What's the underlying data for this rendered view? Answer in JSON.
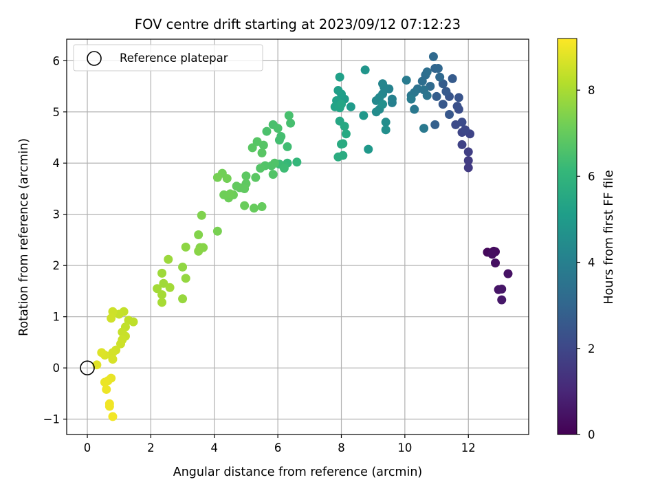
{
  "colors": {
    "viridis": [
      "#440154",
      "#482878",
      "#3e4989",
      "#31688e",
      "#26828e",
      "#1f9e89",
      "#35b779",
      "#6ece58",
      "#b5de2b",
      "#fde725"
    ],
    "grid": "#b0b0b0",
    "axes": "#000000"
  },
  "chart_data": {
    "type": "scatter",
    "title": "FOV centre drift starting at 2023/09/12 07:12:23",
    "xlabel": "Angular distance from reference (arcmin)",
    "ylabel": "Rotation from reference (arcmin)",
    "xlim": [
      -0.65,
      13.9
    ],
    "ylim": [
      -1.3,
      6.42
    ],
    "xticks": [
      0,
      2,
      4,
      6,
      8,
      10,
      12
    ],
    "yticks": [
      -1,
      0,
      1,
      2,
      3,
      4,
      5,
      6
    ],
    "grid": true,
    "legend": {
      "placement": "top-left",
      "entries": [
        {
          "label": "Reference platepar",
          "marker": "open-circle"
        }
      ]
    },
    "reference": {
      "x": 0,
      "y": 0
    },
    "colorbar": {
      "label": "Hours from first FF file",
      "min": 0,
      "max": 9.2,
      "ticks": [
        0,
        2,
        4,
        6,
        8
      ],
      "colormap": "viridis"
    },
    "points": [
      {
        "x": 12.6,
        "y": 2.26,
        "t": 0.2
      },
      {
        "x": 12.8,
        "y": 2.28,
        "t": 0.25
      },
      {
        "x": 12.85,
        "y": 2.27,
        "t": 0.3
      },
      {
        "x": 12.75,
        "y": 2.22,
        "t": 0.35
      },
      {
        "x": 12.85,
        "y": 2.05,
        "t": 0.4
      },
      {
        "x": 13.25,
        "y": 1.84,
        "t": 0.45
      },
      {
        "x": 12.95,
        "y": 1.53,
        "t": 0.5
      },
      {
        "x": 13.05,
        "y": 1.54,
        "t": 0.55
      },
      {
        "x": 13.05,
        "y": 1.33,
        "t": 0.6
      },
      {
        "x": 12.0,
        "y": 3.91,
        "t": 1.6
      },
      {
        "x": 12.0,
        "y": 4.05,
        "t": 1.65
      },
      {
        "x": 12.0,
        "y": 4.22,
        "t": 1.75
      },
      {
        "x": 11.8,
        "y": 4.36,
        "t": 1.85
      },
      {
        "x": 12.05,
        "y": 4.57,
        "t": 1.9
      },
      {
        "x": 11.8,
        "y": 4.6,
        "t": 1.95
      },
      {
        "x": 11.9,
        "y": 4.65,
        "t": 2.0
      },
      {
        "x": 11.6,
        "y": 4.75,
        "t": 2.1
      },
      {
        "x": 11.8,
        "y": 4.8,
        "t": 2.15
      },
      {
        "x": 11.7,
        "y": 5.05,
        "t": 2.2
      },
      {
        "x": 11.65,
        "y": 5.11,
        "t": 2.3
      },
      {
        "x": 11.7,
        "y": 5.28,
        "t": 2.4
      },
      {
        "x": 11.4,
        "y": 5.3,
        "t": 2.45
      },
      {
        "x": 11.4,
        "y": 4.95,
        "t": 2.5
      },
      {
        "x": 11.2,
        "y": 5.15,
        "t": 2.55
      },
      {
        "x": 11.3,
        "y": 5.4,
        "t": 2.6
      },
      {
        "x": 11.5,
        "y": 5.65,
        "t": 2.65
      },
      {
        "x": 11.2,
        "y": 5.55,
        "t": 2.7
      },
      {
        "x": 11.0,
        "y": 5.3,
        "t": 2.75
      },
      {
        "x": 10.95,
        "y": 4.75,
        "t": 2.8
      },
      {
        "x": 10.95,
        "y": 5.85,
        "t": 3.0
      },
      {
        "x": 11.05,
        "y": 5.85,
        "t": 3.05
      },
      {
        "x": 11.1,
        "y": 5.68,
        "t": 3.1
      },
      {
        "x": 10.9,
        "y": 6.08,
        "t": 3.15
      },
      {
        "x": 10.8,
        "y": 5.5,
        "t": 3.2
      },
      {
        "x": 10.65,
        "y": 5.72,
        "t": 3.25
      },
      {
        "x": 10.55,
        "y": 5.6,
        "t": 3.3
      },
      {
        "x": 10.7,
        "y": 5.78,
        "t": 3.35
      },
      {
        "x": 10.4,
        "y": 5.45,
        "t": 3.45
      },
      {
        "x": 10.6,
        "y": 5.43,
        "t": 3.5
      },
      {
        "x": 10.7,
        "y": 5.32,
        "t": 3.55
      },
      {
        "x": 10.3,
        "y": 5.38,
        "t": 3.6
      },
      {
        "x": 10.2,
        "y": 5.32,
        "t": 3.65
      },
      {
        "x": 10.3,
        "y": 5.05,
        "t": 3.7
      },
      {
        "x": 10.6,
        "y": 4.68,
        "t": 3.75
      },
      {
        "x": 10.05,
        "y": 5.62,
        "t": 3.8
      },
      {
        "x": 10.2,
        "y": 5.25,
        "t": 3.85
      },
      {
        "x": 9.6,
        "y": 5.18,
        "t": 4.0
      },
      {
        "x": 9.6,
        "y": 5.25,
        "t": 4.05
      },
      {
        "x": 9.5,
        "y": 5.45,
        "t": 4.1
      },
      {
        "x": 9.35,
        "y": 5.48,
        "t": 4.15
      },
      {
        "x": 9.3,
        "y": 5.55,
        "t": 4.2
      },
      {
        "x": 9.3,
        "y": 5.35,
        "t": 4.25
      },
      {
        "x": 9.2,
        "y": 5.28,
        "t": 4.3
      },
      {
        "x": 9.1,
        "y": 5.22,
        "t": 4.35
      },
      {
        "x": 9.2,
        "y": 5.05,
        "t": 4.4
      },
      {
        "x": 9.1,
        "y": 5.0,
        "t": 4.45
      },
      {
        "x": 9.4,
        "y": 4.8,
        "t": 4.5
      },
      {
        "x": 9.4,
        "y": 4.65,
        "t": 4.55
      },
      {
        "x": 9.3,
        "y": 5.15,
        "t": 4.6
      },
      {
        "x": 8.75,
        "y": 5.82,
        "t": 4.8
      },
      {
        "x": 8.7,
        "y": 4.93,
        "t": 4.85
      },
      {
        "x": 8.85,
        "y": 4.27,
        "t": 4.9
      },
      {
        "x": 8.3,
        "y": 5.1,
        "t": 5.0
      },
      {
        "x": 8.1,
        "y": 5.25,
        "t": 5.05
      },
      {
        "x": 8.0,
        "y": 5.35,
        "t": 5.1
      },
      {
        "x": 7.9,
        "y": 5.42,
        "t": 5.15
      },
      {
        "x": 7.95,
        "y": 5.68,
        "t": 5.2
      },
      {
        "x": 7.85,
        "y": 5.22,
        "t": 5.25
      },
      {
        "x": 7.8,
        "y": 5.1,
        "t": 5.3
      },
      {
        "x": 7.95,
        "y": 5.08,
        "t": 5.35
      },
      {
        "x": 8.0,
        "y": 5.15,
        "t": 5.4
      },
      {
        "x": 7.95,
        "y": 4.82,
        "t": 5.45
      },
      {
        "x": 8.1,
        "y": 4.72,
        "t": 5.5
      },
      {
        "x": 8.15,
        "y": 4.57,
        "t": 5.55
      },
      {
        "x": 8.05,
        "y": 4.38,
        "t": 5.6
      },
      {
        "x": 8.0,
        "y": 4.37,
        "t": 5.62
      },
      {
        "x": 8.05,
        "y": 4.15,
        "t": 5.65
      },
      {
        "x": 7.9,
        "y": 4.12,
        "t": 5.7
      },
      {
        "x": 6.6,
        "y": 4.02,
        "t": 6.1
      },
      {
        "x": 6.3,
        "y": 4.0,
        "t": 6.15
      },
      {
        "x": 6.2,
        "y": 3.95,
        "t": 6.2
      },
      {
        "x": 6.05,
        "y": 3.98,
        "t": 6.25
      },
      {
        "x": 6.2,
        "y": 3.9,
        "t": 6.3
      },
      {
        "x": 6.3,
        "y": 4.32,
        "t": 6.35
      },
      {
        "x": 6.05,
        "y": 4.45,
        "t": 6.4
      },
      {
        "x": 6.1,
        "y": 4.52,
        "t": 6.42
      },
      {
        "x": 6.4,
        "y": 4.78,
        "t": 6.45
      },
      {
        "x": 6.35,
        "y": 4.93,
        "t": 6.47
      },
      {
        "x": 5.85,
        "y": 4.75,
        "t": 6.5
      },
      {
        "x": 6.0,
        "y": 4.68,
        "t": 6.52
      },
      {
        "x": 5.65,
        "y": 4.62,
        "t": 6.55
      },
      {
        "x": 5.8,
        "y": 3.95,
        "t": 6.6
      },
      {
        "x": 5.9,
        "y": 4.0,
        "t": 6.62
      },
      {
        "x": 5.6,
        "y": 3.95,
        "t": 6.65
      },
      {
        "x": 5.85,
        "y": 3.78,
        "t": 6.68
      },
      {
        "x": 5.45,
        "y": 3.9,
        "t": 6.7
      },
      {
        "x": 5.55,
        "y": 4.35,
        "t": 6.72
      },
      {
        "x": 5.35,
        "y": 4.42,
        "t": 6.75
      },
      {
        "x": 5.5,
        "y": 4.2,
        "t": 6.77
      },
      {
        "x": 5.2,
        "y": 4.3,
        "t": 6.8
      },
      {
        "x": 5.3,
        "y": 3.72,
        "t": 6.82
      },
      {
        "x": 5.0,
        "y": 3.75,
        "t": 6.85
      },
      {
        "x": 5.0,
        "y": 3.6,
        "t": 6.87
      },
      {
        "x": 4.8,
        "y": 3.52,
        "t": 6.9
      },
      {
        "x": 4.95,
        "y": 3.5,
        "t": 6.92
      },
      {
        "x": 4.7,
        "y": 3.55,
        "t": 6.95
      },
      {
        "x": 5.5,
        "y": 3.15,
        "t": 7.0
      },
      {
        "x": 5.25,
        "y": 3.12,
        "t": 7.02
      },
      {
        "x": 4.95,
        "y": 3.17,
        "t": 7.05
      },
      {
        "x": 4.6,
        "y": 3.38,
        "t": 7.1
      },
      {
        "x": 4.45,
        "y": 3.32,
        "t": 7.12
      },
      {
        "x": 4.3,
        "y": 3.38,
        "t": 7.15
      },
      {
        "x": 4.5,
        "y": 3.4,
        "t": 7.17
      },
      {
        "x": 4.25,
        "y": 3.8,
        "t": 7.2
      },
      {
        "x": 4.4,
        "y": 3.7,
        "t": 7.22
      },
      {
        "x": 4.1,
        "y": 3.72,
        "t": 7.25
      },
      {
        "x": 4.1,
        "y": 2.67,
        "t": 7.3
      },
      {
        "x": 3.6,
        "y": 2.98,
        "t": 7.4
      },
      {
        "x": 3.5,
        "y": 2.6,
        "t": 7.45
      },
      {
        "x": 3.55,
        "y": 2.35,
        "t": 7.5
      },
      {
        "x": 3.65,
        "y": 2.35,
        "t": 7.52
      },
      {
        "x": 3.5,
        "y": 2.28,
        "t": 7.55
      },
      {
        "x": 3.1,
        "y": 2.36,
        "t": 7.6
      },
      {
        "x": 3.0,
        "y": 1.97,
        "t": 7.65
      },
      {
        "x": 3.1,
        "y": 1.75,
        "t": 7.7
      },
      {
        "x": 3.0,
        "y": 1.35,
        "t": 7.75
      },
      {
        "x": 2.55,
        "y": 2.12,
        "t": 7.8
      },
      {
        "x": 2.35,
        "y": 1.85,
        "t": 7.85
      },
      {
        "x": 2.4,
        "y": 1.65,
        "t": 7.87
      },
      {
        "x": 2.6,
        "y": 1.57,
        "t": 7.9
      },
      {
        "x": 2.2,
        "y": 1.55,
        "t": 7.92
      },
      {
        "x": 2.35,
        "y": 1.43,
        "t": 7.95
      },
      {
        "x": 2.35,
        "y": 1.28,
        "t": 7.97
      },
      {
        "x": 1.45,
        "y": 0.9,
        "t": 8.3
      },
      {
        "x": 1.3,
        "y": 0.93,
        "t": 8.32
      },
      {
        "x": 1.2,
        "y": 0.8,
        "t": 8.35
      },
      {
        "x": 1.15,
        "y": 1.1,
        "t": 8.37
      },
      {
        "x": 1.0,
        "y": 1.05,
        "t": 8.4
      },
      {
        "x": 1.1,
        "y": 0.7,
        "t": 8.42
      },
      {
        "x": 1.2,
        "y": 0.62,
        "t": 8.45
      },
      {
        "x": 1.1,
        "y": 0.55,
        "t": 8.47
      },
      {
        "x": 1.05,
        "y": 0.47,
        "t": 8.5
      },
      {
        "x": 0.8,
        "y": 1.1,
        "t": 8.52
      },
      {
        "x": 0.75,
        "y": 0.97,
        "t": 8.55
      },
      {
        "x": 0.9,
        "y": 0.35,
        "t": 8.57
      },
      {
        "x": 0.8,
        "y": 0.3,
        "t": 8.6
      },
      {
        "x": 0.75,
        "y": 0.25,
        "t": 8.62
      },
      {
        "x": 0.8,
        "y": 0.17,
        "t": 8.65
      },
      {
        "x": 0.55,
        "y": 0.25,
        "t": 8.7
      },
      {
        "x": 0.45,
        "y": 0.3,
        "t": 8.75
      },
      {
        "x": 0.3,
        "y": 0.06,
        "t": 8.8
      },
      {
        "x": 0.75,
        "y": -0.2,
        "t": 8.9
      },
      {
        "x": 0.65,
        "y": -0.25,
        "t": 8.92
      },
      {
        "x": 0.55,
        "y": -0.28,
        "t": 8.95
      },
      {
        "x": 0.6,
        "y": -0.42,
        "t": 8.97
      },
      {
        "x": 0.7,
        "y": -0.75,
        "t": 9.0
      },
      {
        "x": 0.7,
        "y": -0.7,
        "t": 9.02
      },
      {
        "x": 0.8,
        "y": -0.95,
        "t": 9.05
      }
    ]
  }
}
